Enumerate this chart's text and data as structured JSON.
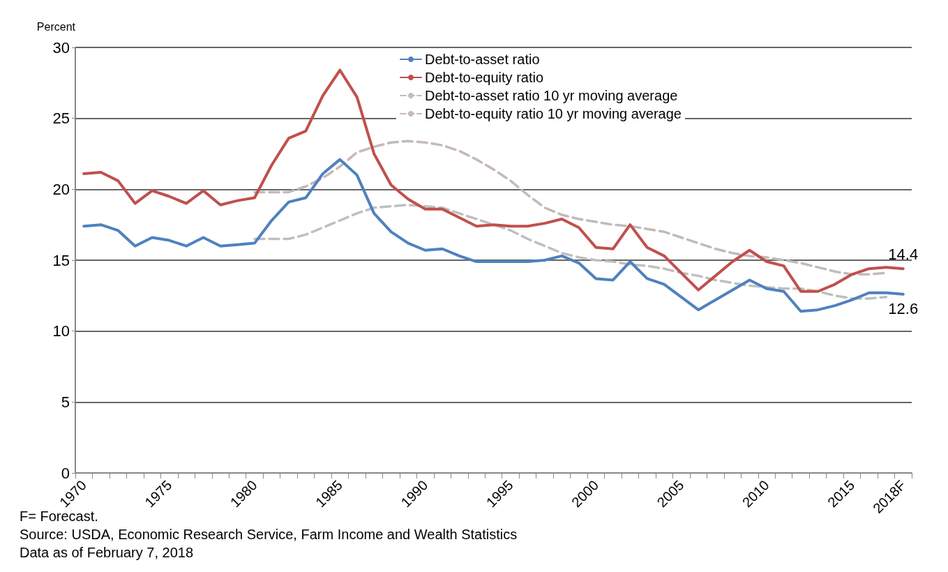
{
  "chart_data": {
    "type": "line",
    "ylabel": "Percent",
    "categories": [
      "1970",
      null,
      null,
      null,
      null,
      "1975",
      null,
      null,
      null,
      null,
      "1980",
      null,
      null,
      null,
      null,
      "1985",
      null,
      null,
      null,
      null,
      "1990",
      null,
      null,
      null,
      null,
      "1995",
      null,
      null,
      null,
      null,
      "2000",
      null,
      null,
      null,
      null,
      "2005",
      null,
      null,
      null,
      null,
      "2010",
      null,
      null,
      null,
      null,
      "2015",
      null,
      null,
      "2018F"
    ],
    "series": [
      {
        "name": "Debt-to-asset ratio",
        "color": "#4f81bd",
        "line_style": "solid",
        "values": [
          17.4,
          17.5,
          17.1,
          16.0,
          16.6,
          16.4,
          16.0,
          16.6,
          16.0,
          16.1,
          16.2,
          17.8,
          19.1,
          19.4,
          21.1,
          22.1,
          21.0,
          18.3,
          17.0,
          16.2,
          15.7,
          15.8,
          15.3,
          14.9,
          14.9,
          14.9,
          14.9,
          15.0,
          15.3,
          14.8,
          13.7,
          13.6,
          14.9,
          13.7,
          13.3,
          12.4,
          11.5,
          12.2,
          12.9,
          13.6,
          13.0,
          12.8,
          11.4,
          11.5,
          11.8,
          12.2,
          12.7,
          12.7,
          12.6
        ],
        "value_labels": [
          null,
          null,
          null,
          null,
          null,
          null,
          null,
          null,
          null,
          null,
          null,
          null,
          null,
          null,
          null,
          null,
          null,
          null,
          null,
          null,
          null,
          null,
          null,
          null,
          null,
          null,
          null,
          null,
          null,
          null,
          null,
          null,
          null,
          null,
          null,
          null,
          null,
          null,
          null,
          null,
          null,
          null,
          null,
          null,
          null,
          null,
          null,
          null,
          "12.6"
        ]
      },
      {
        "name": "Debt-to-equity ratio",
        "color": "#c0504d",
        "line_style": "solid",
        "values": [
          21.1,
          21.2,
          20.6,
          19.0,
          19.9,
          19.5,
          19.0,
          19.9,
          18.9,
          19.2,
          19.4,
          21.7,
          23.6,
          24.1,
          26.6,
          28.4,
          26.5,
          22.5,
          20.3,
          19.3,
          18.6,
          18.6,
          18.0,
          17.4,
          17.5,
          17.4,
          17.4,
          17.6,
          17.9,
          17.3,
          15.9,
          15.8,
          17.5,
          15.9,
          15.3,
          14.1,
          12.9,
          13.9,
          14.9,
          15.7,
          14.9,
          14.6,
          12.8,
          12.8,
          13.3,
          14.0,
          14.4,
          14.5,
          14.4
        ],
        "value_labels": [
          null,
          null,
          null,
          null,
          null,
          null,
          null,
          null,
          null,
          null,
          null,
          null,
          null,
          null,
          null,
          null,
          null,
          null,
          null,
          null,
          null,
          null,
          null,
          null,
          null,
          null,
          null,
          null,
          null,
          null,
          null,
          null,
          null,
          null,
          null,
          null,
          null,
          null,
          null,
          null,
          null,
          null,
          null,
          null,
          null,
          null,
          null,
          null,
          "14.4"
        ]
      },
      {
        "name": "Debt-to-asset ratio 10 yr moving average",
        "color": "#bfbfbf",
        "line_style": "dashed",
        "values": [
          null,
          null,
          null,
          null,
          null,
          null,
          null,
          null,
          null,
          null,
          16.5,
          16.5,
          16.5,
          16.8,
          17.3,
          17.8,
          18.3,
          18.7,
          18.8,
          18.9,
          18.8,
          18.7,
          18.3,
          17.9,
          17.5,
          17.1,
          16.5,
          16.0,
          15.5,
          15.2,
          15.0,
          14.9,
          14.7,
          14.6,
          14.4,
          14.1,
          13.9,
          13.6,
          13.4,
          13.2,
          13.1,
          13.0,
          13.0,
          12.8,
          12.5,
          12.3,
          12.3,
          12.4,
          null
        ]
      },
      {
        "name": "Debt-to-equity ratio 10 yr moving average",
        "color": "#c4b9b9",
        "line_style": "dashed",
        "values": [
          null,
          null,
          null,
          null,
          null,
          null,
          null,
          null,
          null,
          null,
          19.8,
          19.8,
          19.8,
          20.2,
          20.8,
          21.6,
          22.6,
          23.0,
          23.3,
          23.4,
          23.3,
          23.1,
          22.7,
          22.1,
          21.4,
          20.6,
          19.6,
          18.7,
          18.2,
          17.9,
          17.7,
          17.5,
          17.4,
          17.2,
          17.0,
          16.6,
          16.2,
          15.8,
          15.5,
          15.3,
          15.2,
          15.0,
          14.8,
          14.5,
          14.2,
          14.0,
          14.0,
          14.1,
          null
        ]
      }
    ],
    "ylim": [
      0,
      30
    ],
    "yticks": [
      0,
      5,
      10,
      15,
      20,
      25,
      30
    ],
    "grid": "y",
    "legend": "top",
    "marker": "none",
    "annotations": [
      "F= Forecast.",
      "Source: USDA, Economic Research Service, Farm Income and Wealth Statistics",
      "Data as of February 7, 2018"
    ]
  }
}
